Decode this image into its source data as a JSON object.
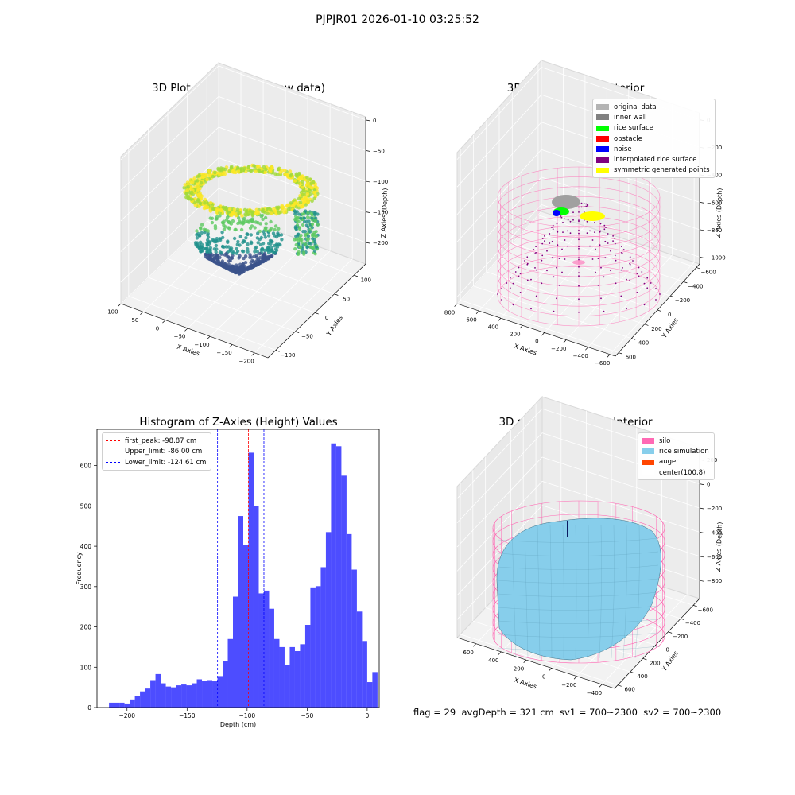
{
  "figure": {
    "suptitle": "PJPJR01 2026-01-10 03:25:52",
    "footer": "flag = 29  avgDepth = 321 cm  sv1 = 700~2300  sv2 = 700~2300"
  },
  "chart_data": [
    {
      "type": "scatter",
      "subtype": "3d",
      "title": "3D Plot of Silo Interior(row data)",
      "xlabel": "X Axies",
      "ylabel": "Y Axies",
      "zlabel": "Z Axies (Depth)",
      "xlim": [
        -230,
        100
      ],
      "ylim": [
        -120,
        130
      ],
      "zlim": [
        -235,
        5
      ],
      "xticks": [
        -200,
        -150,
        -100,
        -50,
        0,
        50,
        100
      ],
      "yticks": [
        -100,
        -50,
        0,
        50,
        100
      ],
      "zticks": [
        0,
        -50,
        -100,
        -150,
        -200
      ],
      "colormap": "viridis (by depth)",
      "grid": true
    },
    {
      "type": "scatter",
      "subtype": "3d",
      "title": "3D classify of Silo Interior",
      "xlabel": "X Axies",
      "ylabel": "Y Axies",
      "zlabel": "Z Axies (Depth)",
      "xlim": [
        -650,
        800
      ],
      "ylim": [
        -650,
        650
      ],
      "zlim": [
        -1050,
        50
      ],
      "xticks": [
        -600,
        -400,
        -200,
        0,
        200,
        400,
        600,
        800
      ],
      "yticks": [
        600,
        400,
        200,
        0,
        -200,
        -400,
        -600
      ],
      "zticks": [
        0,
        -200,
        -400,
        -600,
        -800,
        -1000
      ],
      "legend": {
        "placement": "top-right",
        "entries": [
          {
            "label": "original data",
            "color": "#b4b4b4"
          },
          {
            "label": "inner wall",
            "color": "#808080"
          },
          {
            "label": "rice surface",
            "color": "#00ff00"
          },
          {
            "label": "obstacle",
            "color": "#ff0000"
          },
          {
            "label": "noise",
            "color": "#0000ff"
          },
          {
            "label": "interpolated rice surface",
            "color": "#800080"
          },
          {
            "label": "symmetric generated points",
            "color": "#ffff00"
          }
        ]
      },
      "silo_wireframe_color": "#ff69b4",
      "grid": true
    },
    {
      "type": "bar",
      "subtype": "histogram",
      "title": "Histogram of Z-Axies (Height) Values",
      "xlabel": "Depth (cm)",
      "ylabel": "Frequency",
      "xlim": [
        -225,
        10
      ],
      "ylim": [
        0,
        690
      ],
      "xticks": [
        -200,
        -150,
        -100,
        -50,
        0
      ],
      "yticks": [
        0,
        100,
        200,
        300,
        400,
        500,
        600
      ],
      "bin_edges_start": -215.0,
      "bin_width": 4.3,
      "bar_color": "#4d4dff",
      "values": [
        12,
        12,
        12,
        10,
        20,
        28,
        40,
        47,
        68,
        83,
        60,
        52,
        50,
        55,
        57,
        55,
        60,
        70,
        67,
        68,
        65,
        78,
        115,
        170,
        275,
        475,
        403,
        632,
        500,
        283,
        290,
        245,
        170,
        150,
        105,
        150,
        140,
        157,
        205,
        298,
        301,
        348,
        435,
        655,
        648,
        575,
        430,
        342,
        238,
        165,
        63,
        88
      ],
      "lines": [
        {
          "label": "first_peak: -98.87 cm",
          "x": -98.87,
          "color": "#ff0000"
        },
        {
          "label": "Upper_limit: -86.00 cm",
          "x": -86.0,
          "color": "#0000ff"
        },
        {
          "label": "Lower_limit: -124.61 cm",
          "x": -124.61,
          "color": "#0000ff"
        }
      ],
      "legend_placement": "top-left"
    },
    {
      "type": "scatter",
      "subtype": "3d-surface",
      "title": "3D simulation of Silo Interior",
      "xlabel": "X Axies",
      "ylabel": "Y Axies",
      "zlabel": "Z Axies (Depth)",
      "xlim": [
        -500,
        750
      ],
      "ylim": [
        -700,
        650
      ],
      "zlim": [
        -950,
        300
      ],
      "xticks": [
        -400,
        -200,
        0,
        200,
        400,
        600
      ],
      "yticks": [
        600,
        400,
        200,
        0,
        -200,
        -400,
        -600
      ],
      "zticks": [
        200,
        0,
        -200,
        -400,
        -600,
        -800
      ],
      "legend": {
        "placement": "top-right",
        "entries": [
          {
            "label": "silo",
            "color": "#ff69b4"
          },
          {
            "label": "rice simulation",
            "color": "#87ceeb"
          },
          {
            "label": "auger",
            "color": "#ff4500"
          },
          {
            "label": "center(100,8)",
            "color": "#ffffff"
          }
        ]
      },
      "grid": true
    }
  ]
}
